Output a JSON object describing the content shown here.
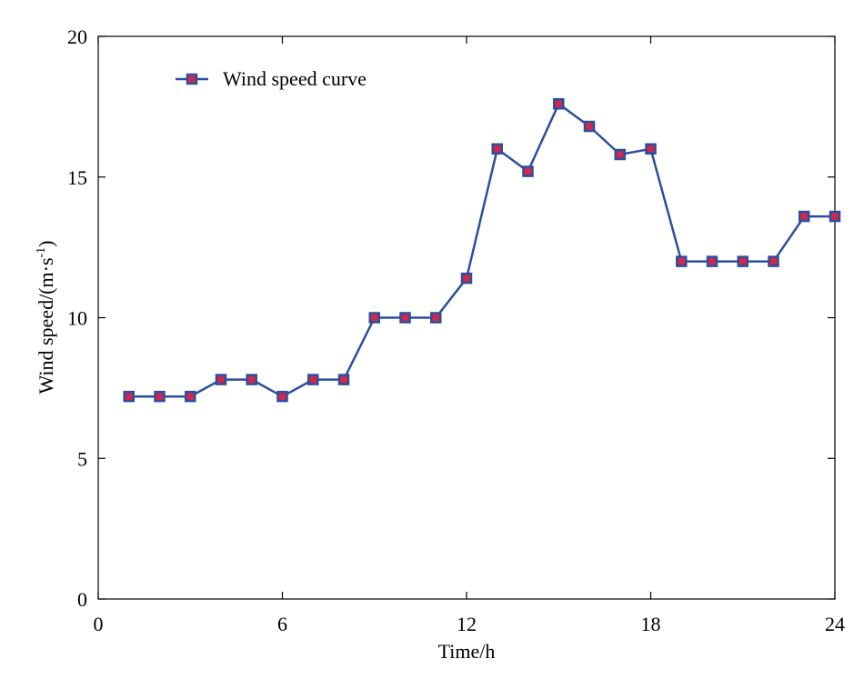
{
  "chart_data": {
    "type": "line",
    "xlabel": "Time/h",
    "ylabel_main": "Wind speed/(m·s",
    "ylabel_sup": "-1",
    "ylabel_end": ")",
    "xlim": [
      0,
      24
    ],
    "ylim": [
      0,
      20
    ],
    "xticks": [
      "0",
      "6",
      "12",
      "18",
      "24"
    ],
    "yticks": [
      "0",
      "5",
      "10",
      "15",
      "20"
    ],
    "grid": false,
    "legend_position": "top-left",
    "series": [
      {
        "name": "Wind speed curve",
        "color": "#2b4f9e",
        "marker_fill": "#d2264b",
        "x": [
          1,
          2,
          3,
          4,
          5,
          6,
          7,
          8,
          9,
          10,
          11,
          12,
          13,
          14,
          15,
          16,
          17,
          18,
          19,
          20,
          21,
          22,
          23,
          24
        ],
        "y": [
          7.2,
          7.2,
          7.2,
          7.8,
          7.8,
          7.2,
          7.8,
          7.8,
          10.0,
          10.0,
          10.0,
          11.4,
          16.0,
          15.2,
          17.6,
          16.8,
          15.8,
          16.0,
          12.0,
          12.0,
          12.0,
          12.0,
          13.6,
          13.6
        ]
      }
    ]
  }
}
